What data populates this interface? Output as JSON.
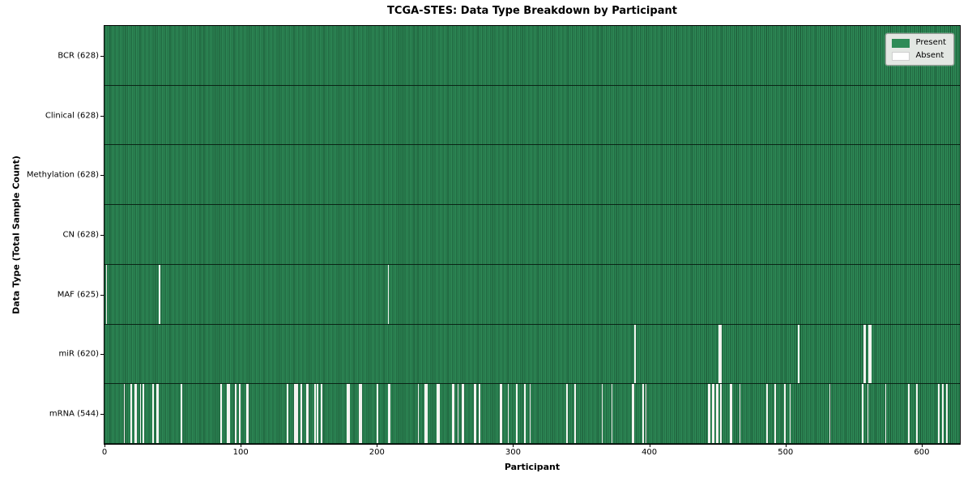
{
  "title": "TCGA-STES: Data Type Breakdown by Participant",
  "axes": {
    "xlabel": "Participant",
    "ylabel": "Data Type (Total Sample Count)"
  },
  "chart_data": {
    "type": "heatmap",
    "title": "TCGA-STES: Data Type Breakdown by Participant",
    "xlabel": "Participant",
    "ylabel": "Data Type (Total Sample Count)",
    "x_range": [
      0,
      628
    ],
    "x_ticks": [
      0,
      100,
      200,
      300,
      400,
      500,
      600
    ],
    "total_participants": 628,
    "grid": false,
    "legend_position": "upper-right",
    "legend_items": [
      {
        "label": "Present",
        "color": "#2e8b57"
      },
      {
        "label": "Absent",
        "color": "#ffffff"
      }
    ],
    "rows": [
      {
        "name": "BCR",
        "label": "BCR (628)",
        "present_count": 628,
        "absent_count": 0,
        "absent_participants": []
      },
      {
        "name": "Clinical",
        "label": "Clinical (628)",
        "present_count": 628,
        "absent_count": 0,
        "absent_participants": []
      },
      {
        "name": "Methylation",
        "label": "Methylation (628)",
        "present_count": 628,
        "absent_count": 0,
        "absent_participants": []
      },
      {
        "name": "CN",
        "label": "CN (628)",
        "present_count": 628,
        "absent_count": 0,
        "absent_participants": []
      },
      {
        "name": "MAF",
        "label": "MAF (625)",
        "present_count": 625,
        "absent_count": 3,
        "absent_participants": [
          1,
          40,
          208
        ]
      },
      {
        "name": "miR",
        "label": "miR (620)",
        "present_count": 620,
        "absent_count": 8,
        "absent_participants": [
          389,
          451,
          452,
          509,
          557,
          558,
          561,
          562
        ]
      },
      {
        "name": "mRNA",
        "label": "mRNA (544)",
        "present_count": 544,
        "absent_count": 84,
        "absent_participants": [
          14,
          19,
          22,
          23,
          26,
          28,
          35,
          38,
          39,
          56,
          85,
          90,
          91,
          96,
          99,
          104,
          105,
          134,
          139,
          140,
          141,
          144,
          148,
          149,
          154,
          156,
          159,
          178,
          179,
          187,
          188,
          200,
          208,
          209,
          230,
          235,
          236,
          244,
          245,
          255,
          256,
          259,
          262,
          263,
          271,
          272,
          275,
          290,
          291,
          296,
          302,
          308,
          312,
          339,
          345,
          365,
          372,
          387,
          388,
          395,
          397,
          443,
          444,
          446,
          447,
          449,
          450,
          452,
          459,
          460,
          466,
          486,
          492,
          499,
          503,
          532,
          556,
          560,
          573,
          590,
          596,
          612,
          615,
          618
        ]
      }
    ]
  }
}
